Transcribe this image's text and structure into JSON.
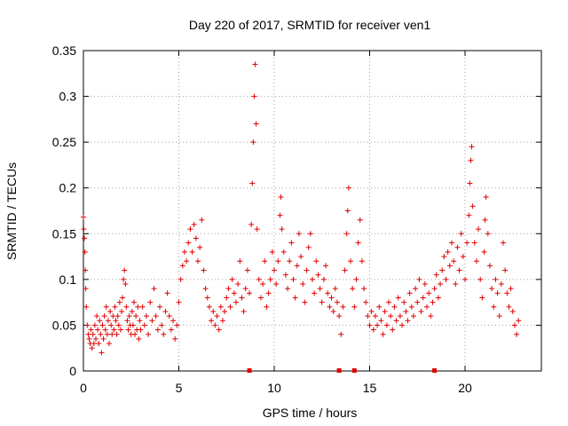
{
  "chart_data": {
    "type": "scatter",
    "title": "Day 220 of 2017, SRMTID for receiver ven1",
    "xlabel": "GPS time / hours",
    "ylabel": "SRMTID / TECUs",
    "xlim": [
      0,
      24
    ],
    "ylim": [
      0,
      0.35
    ],
    "x_ticks": [
      0,
      5,
      10,
      15,
      20
    ],
    "y_ticks": [
      0,
      0.05,
      0.1,
      0.15,
      0.2,
      0.25,
      0.3,
      0.35
    ],
    "x_tick_labels": [
      "0",
      "5",
      "10",
      "15",
      "20"
    ],
    "y_tick_labels": [
      "0",
      "0.05",
      "0.1",
      "0.15",
      "0.2",
      "0.25",
      "0.3",
      "0.35"
    ],
    "grid": true,
    "marker": "+",
    "color": "#e00000",
    "baseline_markers_x": [
      8.7,
      13.4,
      14.2,
      18.4
    ],
    "series": [
      {
        "name": "ven1",
        "points": [
          [
            0.0,
            0.168
          ],
          [
            0.02,
            0.155
          ],
          [
            0.05,
            0.145
          ],
          [
            0.08,
            0.13
          ],
          [
            0.1,
            0.11
          ],
          [
            0.12,
            0.09
          ],
          [
            0.15,
            0.07
          ],
          [
            0.2,
            0.05
          ],
          [
            0.25,
            0.04
          ],
          [
            0.3,
            0.035
          ],
          [
            0.35,
            0.03
          ],
          [
            0.4,
            0.045
          ],
          [
            0.45,
            0.025
          ],
          [
            0.5,
            0.04
          ],
          [
            0.55,
            0.03
          ],
          [
            0.6,
            0.05
          ],
          [
            0.65,
            0.035
          ],
          [
            0.7,
            0.06
          ],
          [
            0.75,
            0.045
          ],
          [
            0.8,
            0.03
          ],
          [
            0.85,
            0.055
          ],
          [
            0.9,
            0.04
          ],
          [
            0.95,
            0.02
          ],
          [
            1.0,
            0.05
          ],
          [
            1.05,
            0.035
          ],
          [
            1.1,
            0.06
          ],
          [
            1.15,
            0.045
          ],
          [
            1.2,
            0.07
          ],
          [
            1.25,
            0.04
          ],
          [
            1.3,
            0.055
          ],
          [
            1.35,
            0.03
          ],
          [
            1.4,
            0.065
          ],
          [
            1.45,
            0.05
          ],
          [
            1.5,
            0.04
          ],
          [
            1.55,
            0.06
          ],
          [
            1.6,
            0.045
          ],
          [
            1.65,
            0.07
          ],
          [
            1.7,
            0.055
          ],
          [
            1.75,
            0.04
          ],
          [
            1.8,
            0.06
          ],
          [
            1.85,
            0.05
          ],
          [
            1.9,
            0.075
          ],
          [
            1.95,
            0.045
          ],
          [
            2.0,
            0.065
          ],
          [
            2.05,
            0.08
          ],
          [
            2.1,
            0.1
          ],
          [
            2.15,
            0.11
          ],
          [
            2.2,
            0.095
          ],
          [
            2.25,
            0.07
          ],
          [
            2.3,
            0.055
          ],
          [
            2.35,
            0.045
          ],
          [
            2.4,
            0.06
          ],
          [
            2.45,
            0.05
          ],
          [
            2.5,
            0.04
          ],
          [
            2.55,
            0.065
          ],
          [
            2.6,
            0.05
          ],
          [
            2.65,
            0.075
          ],
          [
            2.7,
            0.04
          ],
          [
            2.75,
            0.06
          ],
          [
            2.8,
            0.045
          ],
          [
            2.85,
            0.07
          ],
          [
            2.9,
            0.035
          ],
          [
            2.95,
            0.055
          ],
          [
            3.0,
            0.045
          ],
          [
            3.1,
            0.07
          ],
          [
            3.2,
            0.05
          ],
          [
            3.3,
            0.06
          ],
          [
            3.4,
            0.04
          ],
          [
            3.5,
            0.075
          ],
          [
            3.6,
            0.055
          ],
          [
            3.7,
            0.09
          ],
          [
            3.8,
            0.06
          ],
          [
            3.9,
            0.045
          ],
          [
            4.0,
            0.07
          ],
          [
            4.1,
            0.05
          ],
          [
            4.2,
            0.04
          ],
          [
            4.3,
            0.065
          ],
          [
            4.4,
            0.085
          ],
          [
            4.5,
            0.06
          ],
          [
            4.6,
            0.045
          ],
          [
            4.7,
            0.055
          ],
          [
            4.8,
            0.035
          ],
          [
            4.9,
            0.05
          ],
          [
            5.0,
            0.075
          ],
          [
            5.1,
            0.1
          ],
          [
            5.2,
            0.115
          ],
          [
            5.3,
            0.13
          ],
          [
            5.4,
            0.12
          ],
          [
            5.5,
            0.14
          ],
          [
            5.6,
            0.155
          ],
          [
            5.7,
            0.13
          ],
          [
            5.8,
            0.16
          ],
          [
            5.9,
            0.145
          ],
          [
            6.0,
            0.12
          ],
          [
            6.1,
            0.135
          ],
          [
            6.2,
            0.165
          ],
          [
            6.3,
            0.11
          ],
          [
            6.4,
            0.09
          ],
          [
            6.5,
            0.08
          ],
          [
            6.6,
            0.07
          ],
          [
            6.7,
            0.055
          ],
          [
            6.8,
            0.065
          ],
          [
            6.9,
            0.05
          ],
          [
            7.0,
            0.06
          ],
          [
            7.1,
            0.045
          ],
          [
            7.2,
            0.07
          ],
          [
            7.3,
            0.055
          ],
          [
            7.4,
            0.065
          ],
          [
            7.5,
            0.08
          ],
          [
            7.6,
            0.09
          ],
          [
            7.7,
            0.07
          ],
          [
            7.8,
            0.1
          ],
          [
            7.9,
            0.085
          ],
          [
            8.0,
            0.075
          ],
          [
            8.1,
            0.095
          ],
          [
            8.2,
            0.12
          ],
          [
            8.3,
            0.08
          ],
          [
            8.4,
            0.065
          ],
          [
            8.5,
            0.09
          ],
          [
            8.6,
            0.11
          ],
          [
            8.7,
            0.085
          ],
          [
            8.8,
            0.16
          ],
          [
            8.85,
            0.205
          ],
          [
            8.9,
            0.25
          ],
          [
            8.95,
            0.3
          ],
          [
            9.0,
            0.335
          ],
          [
            9.05,
            0.27
          ],
          [
            9.1,
            0.155
          ],
          [
            9.2,
            0.1
          ],
          [
            9.3,
            0.08
          ],
          [
            9.4,
            0.095
          ],
          [
            9.5,
            0.12
          ],
          [
            9.6,
            0.07
          ],
          [
            9.7,
            0.085
          ],
          [
            9.8,
            0.1
          ],
          [
            9.9,
            0.13
          ],
          [
            10.0,
            0.11
          ],
          [
            10.1,
            0.095
          ],
          [
            10.2,
            0.12
          ],
          [
            10.3,
            0.17
          ],
          [
            10.35,
            0.19
          ],
          [
            10.4,
            0.155
          ],
          [
            10.5,
            0.13
          ],
          [
            10.6,
            0.105
          ],
          [
            10.7,
            0.09
          ],
          [
            10.8,
            0.12
          ],
          [
            10.9,
            0.14
          ],
          [
            11.0,
            0.1
          ],
          [
            11.1,
            0.08
          ],
          [
            11.2,
            0.115
          ],
          [
            11.3,
            0.15
          ],
          [
            11.4,
            0.125
          ],
          [
            11.5,
            0.095
          ],
          [
            11.6,
            0.075
          ],
          [
            11.7,
            0.11
          ],
          [
            11.8,
            0.135
          ],
          [
            11.9,
            0.15
          ],
          [
            12.0,
            0.1
          ],
          [
            12.1,
            0.085
          ],
          [
            12.2,
            0.12
          ],
          [
            12.3,
            0.105
          ],
          [
            12.4,
            0.09
          ],
          [
            12.5,
            0.075
          ],
          [
            12.6,
            0.1
          ],
          [
            12.7,
            0.115
          ],
          [
            12.8,
            0.085
          ],
          [
            12.9,
            0.07
          ],
          [
            13.0,
            0.08
          ],
          [
            13.1,
            0.065
          ],
          [
            13.2,
            0.09
          ],
          [
            13.3,
            0.075
          ],
          [
            13.4,
            0.06
          ],
          [
            13.5,
            0.04
          ],
          [
            13.6,
            0.07
          ],
          [
            13.7,
            0.11
          ],
          [
            13.8,
            0.15
          ],
          [
            13.85,
            0.175
          ],
          [
            13.9,
            0.2
          ],
          [
            14.0,
            0.12
          ],
          [
            14.1,
            0.09
          ],
          [
            14.2,
            0.07
          ],
          [
            14.3,
            0.1
          ],
          [
            14.4,
            0.14
          ],
          [
            14.5,
            0.165
          ],
          [
            14.6,
            0.12
          ],
          [
            14.7,
            0.09
          ],
          [
            14.8,
            0.075
          ],
          [
            14.9,
            0.06
          ],
          [
            15.0,
            0.05
          ],
          [
            15.1,
            0.065
          ],
          [
            15.2,
            0.045
          ],
          [
            15.3,
            0.06
          ],
          [
            15.4,
            0.05
          ],
          [
            15.5,
            0.07
          ],
          [
            15.6,
            0.055
          ],
          [
            15.7,
            0.04
          ],
          [
            15.8,
            0.065
          ],
          [
            15.9,
            0.05
          ],
          [
            16.0,
            0.075
          ],
          [
            16.1,
            0.06
          ],
          [
            16.2,
            0.045
          ],
          [
            16.3,
            0.07
          ],
          [
            16.4,
            0.055
          ],
          [
            16.5,
            0.08
          ],
          [
            16.6,
            0.06
          ],
          [
            16.7,
            0.05
          ],
          [
            16.8,
            0.075
          ],
          [
            16.9,
            0.065
          ],
          [
            17.0,
            0.055
          ],
          [
            17.1,
            0.085
          ],
          [
            17.2,
            0.07
          ],
          [
            17.3,
            0.06
          ],
          [
            17.4,
            0.09
          ],
          [
            17.5,
            0.075
          ],
          [
            17.6,
            0.1
          ],
          [
            17.7,
            0.065
          ],
          [
            17.8,
            0.08
          ],
          [
            17.9,
            0.095
          ],
          [
            18.0,
            0.07
          ],
          [
            18.1,
            0.085
          ],
          [
            18.2,
            0.06
          ],
          [
            18.3,
            0.075
          ],
          [
            18.4,
            0.09
          ],
          [
            18.5,
            0.105
          ],
          [
            18.6,
            0.08
          ],
          [
            18.7,
            0.095
          ],
          [
            18.8,
            0.11
          ],
          [
            18.9,
            0.125
          ],
          [
            19.0,
            0.1
          ],
          [
            19.1,
            0.13
          ],
          [
            19.2,
            0.115
          ],
          [
            19.3,
            0.14
          ],
          [
            19.4,
            0.12
          ],
          [
            19.5,
            0.095
          ],
          [
            19.6,
            0.135
          ],
          [
            19.7,
            0.11
          ],
          [
            19.8,
            0.15
          ],
          [
            19.9,
            0.125
          ],
          [
            20.0,
            0.1
          ],
          [
            20.1,
            0.14
          ],
          [
            20.2,
            0.17
          ],
          [
            20.25,
            0.205
          ],
          [
            20.3,
            0.23
          ],
          [
            20.35,
            0.245
          ],
          [
            20.4,
            0.18
          ],
          [
            20.5,
            0.14
          ],
          [
            20.6,
            0.12
          ],
          [
            20.7,
            0.155
          ],
          [
            20.8,
            0.1
          ],
          [
            20.9,
            0.08
          ],
          [
            21.0,
            0.13
          ],
          [
            21.05,
            0.165
          ],
          [
            21.1,
            0.19
          ],
          [
            21.2,
            0.15
          ],
          [
            21.3,
            0.115
          ],
          [
            21.4,
            0.09
          ],
          [
            21.5,
            0.07
          ],
          [
            21.6,
            0.1
          ],
          [
            21.7,
            0.085
          ],
          [
            21.8,
            0.06
          ],
          [
            21.9,
            0.095
          ],
          [
            22.0,
            0.14
          ],
          [
            22.1,
            0.11
          ],
          [
            22.2,
            0.085
          ],
          [
            22.3,
            0.07
          ],
          [
            22.4,
            0.09
          ],
          [
            22.5,
            0.065
          ],
          [
            22.6,
            0.05
          ],
          [
            22.7,
            0.04
          ],
          [
            22.8,
            0.055
          ]
        ]
      }
    ]
  }
}
